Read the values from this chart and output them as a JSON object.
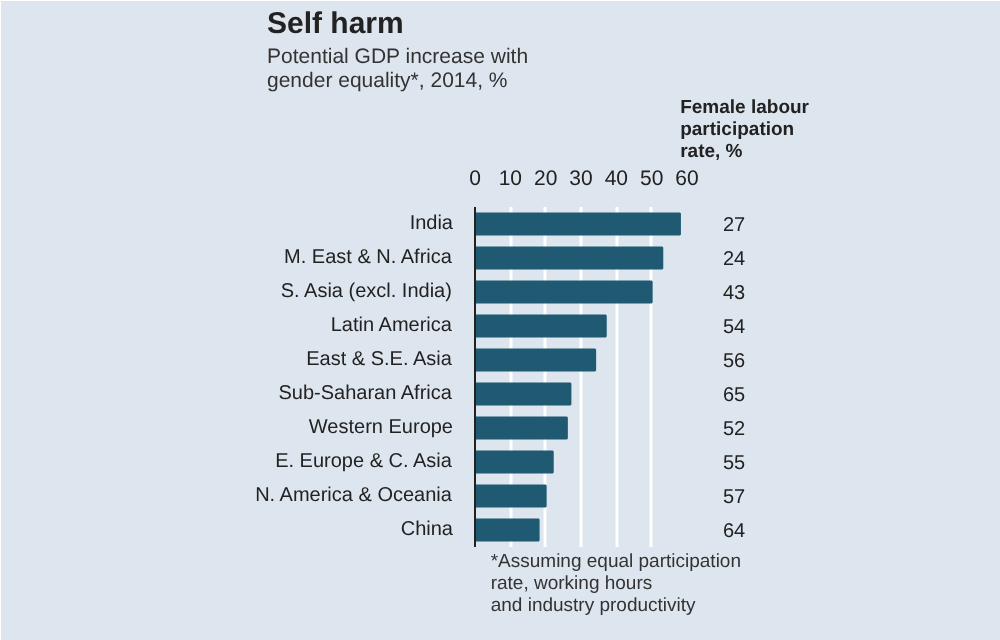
{
  "chart_data": {
    "type": "bar",
    "orientation": "horizontal",
    "title": "Self harm",
    "subtitle": "Potential GDP increase with gender equality*, 2014, %",
    "categories": [
      "India",
      "M. East & N. Africa",
      "S. Asia (excl. India)",
      "Latin America",
      "East & S.E. Asia",
      "Sub-Saharan Africa",
      "Western Europe",
      "E. Europe & C. Asia",
      "N. America & Oceania",
      "China"
    ],
    "values": [
      58,
      53,
      50,
      37,
      34,
      27,
      26,
      22,
      20,
      18
    ],
    "color": "#1f5a72",
    "xlim": [
      0,
      60
    ],
    "xticks": [
      0,
      10,
      20,
      30,
      40,
      50,
      60
    ],
    "grid": "x",
    "annotations": [
      "Female labour participation rate, %",
      "27",
      "24",
      "43",
      "54",
      "56",
      "65",
      "52",
      "55",
      "57",
      "64",
      "*Assuming equal participation rate, working hours and industry productivity"
    ]
  }
}
